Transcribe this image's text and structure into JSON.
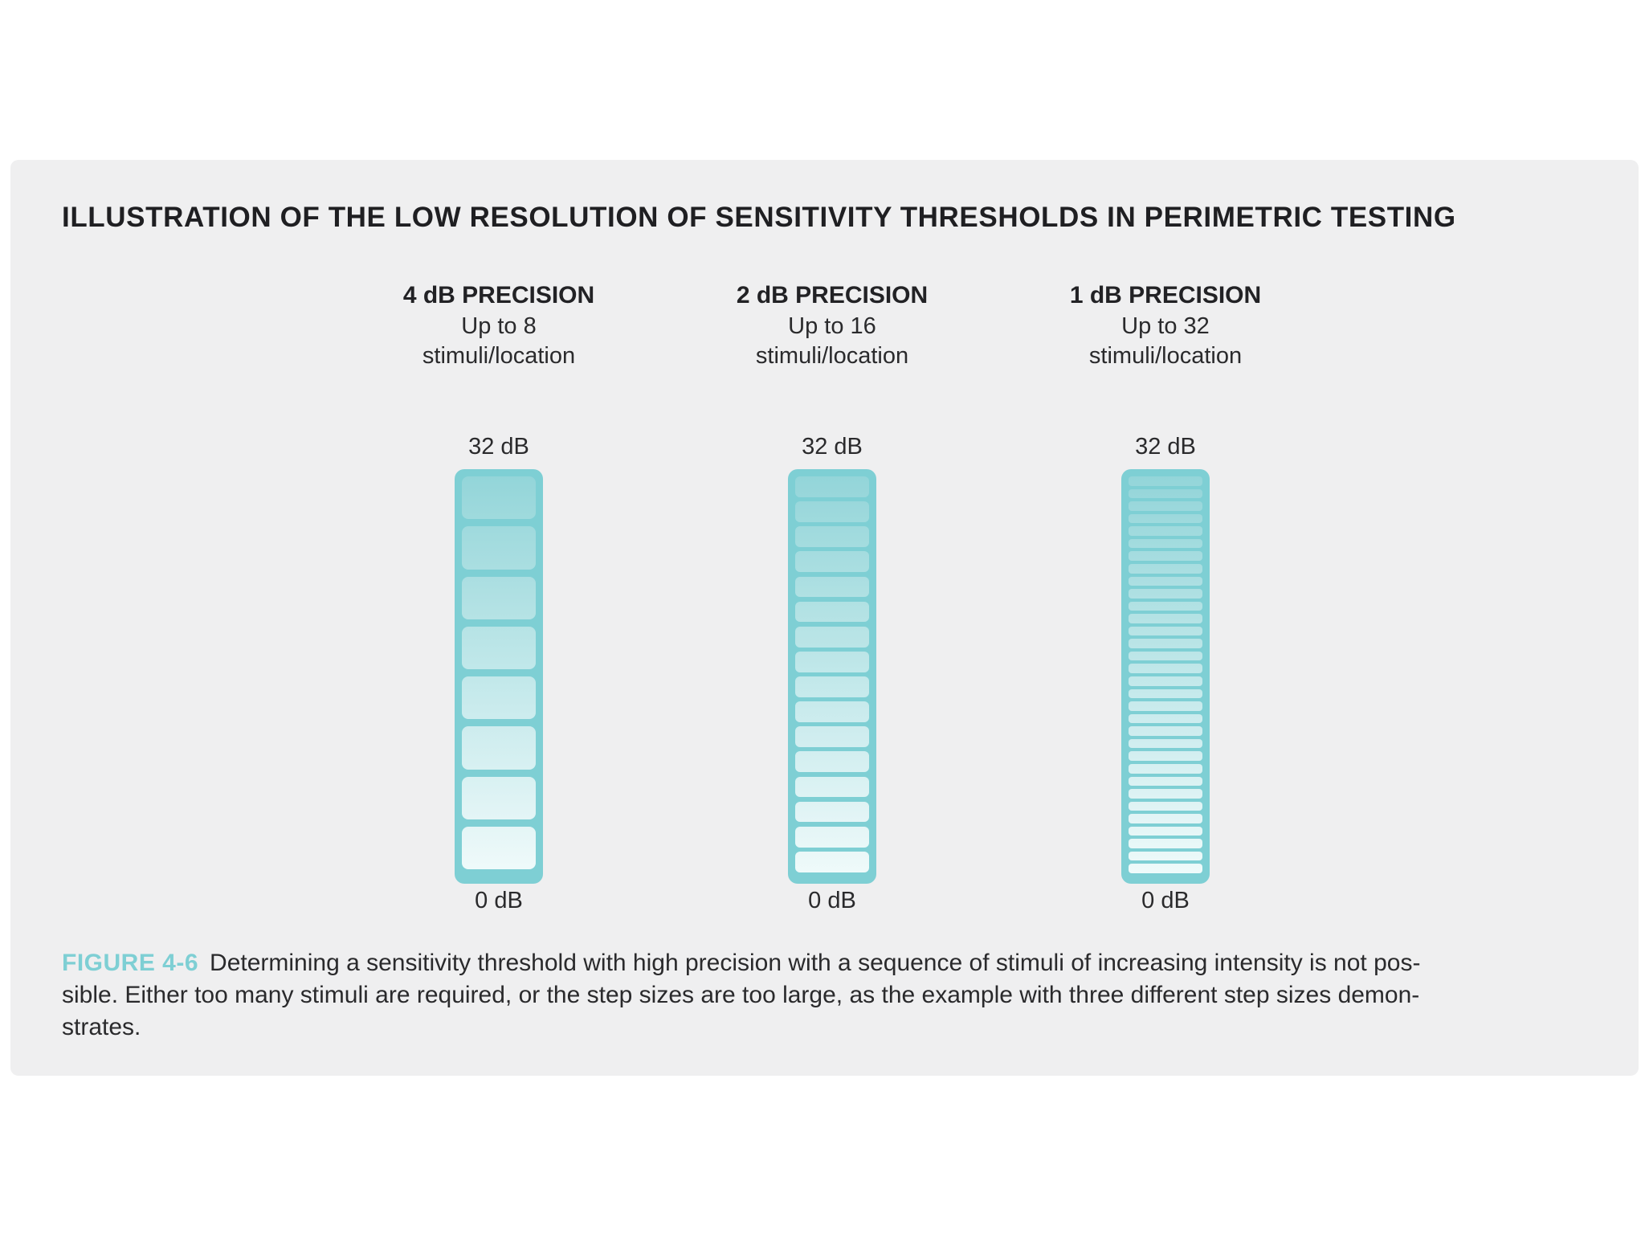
{
  "title": "ILLUSTRATION OF THE LOW RESOLUTION OF SENSITIVITY THRESHOLDS IN PERIMETRIC TESTING",
  "columns": [
    {
      "heading": "4 dB PRECISION",
      "sub_line1": "Up to 8",
      "sub_line2": "stimuli/location",
      "top_label": "32 dB",
      "bottom_label": "0 dB",
      "steps": 8
    },
    {
      "heading": "2 dB PRECISION",
      "sub_line1": "Up to 16",
      "sub_line2": "stimuli/location",
      "top_label": "32 dB",
      "bottom_label": "0 dB",
      "steps": 16
    },
    {
      "heading": "1 dB PRECISION",
      "sub_line1": "Up to 32",
      "sub_line2": "stimuli/location",
      "top_label": "32 dB",
      "bottom_label": "0 dB",
      "steps": 32
    }
  ],
  "caption": {
    "label": "FIGURE 4-6",
    "line1": "Determining a sensitivity threshold with high precision with a sequence of stimuli of increasing intensity is not pos-",
    "line2": "sible. Either too many stimuli are required, or the step sizes are too large, as the example with three different step sizes demon-",
    "line3": "strates."
  },
  "colors": {
    "accent": "#7ecfd4",
    "step_dark": "#93d5d9",
    "step_light": "#effafa",
    "panel": "#efeff0"
  }
}
